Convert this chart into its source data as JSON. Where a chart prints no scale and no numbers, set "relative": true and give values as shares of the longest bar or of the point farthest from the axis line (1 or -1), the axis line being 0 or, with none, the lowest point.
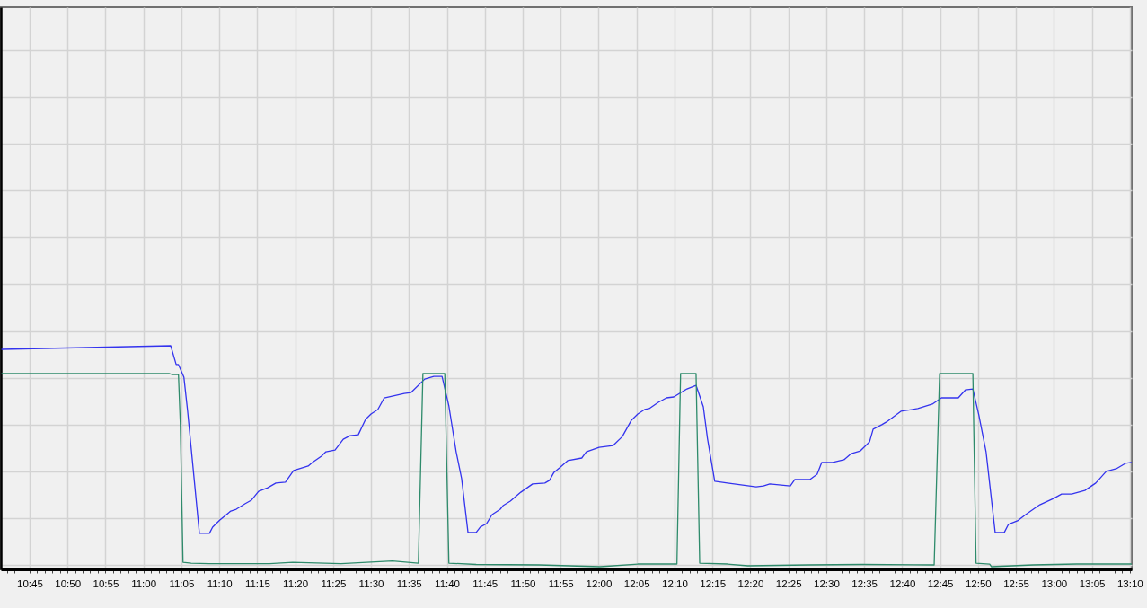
{
  "chart_data": {
    "type": "line",
    "relative": true,
    "grid": true,
    "xlim": [
      10.687,
      13.171
    ],
    "xticks": [
      {
        "value": 10.7,
        "label": null
      },
      {
        "value": 10.7167,
        "label": null
      },
      {
        "value": 10.7333,
        "label": null
      },
      {
        "value": 10.75,
        "label": "10:45"
      },
      {
        "value": 10.7667,
        "label": null
      },
      {
        "value": 10.7833,
        "label": null
      },
      {
        "value": 10.8,
        "label": null
      },
      {
        "value": 10.8167,
        "label": null
      },
      {
        "value": 10.8333,
        "label": "10:50"
      },
      {
        "value": 10.85,
        "label": null
      },
      {
        "value": 10.8667,
        "label": null
      },
      {
        "value": 10.8833,
        "label": null
      },
      {
        "value": 10.9,
        "label": null
      },
      {
        "value": 10.9167,
        "label": "10:55"
      },
      {
        "value": 10.9333,
        "label": null
      },
      {
        "value": 10.95,
        "label": null
      },
      {
        "value": 10.9667,
        "label": null
      },
      {
        "value": 10.9833,
        "label": null
      },
      {
        "value": 11,
        "label": "11:00"
      },
      {
        "value": 11.0167,
        "label": null
      },
      {
        "value": 11.0333,
        "label": null
      },
      {
        "value": 11.05,
        "label": null
      },
      {
        "value": 11.0667,
        "label": null
      },
      {
        "value": 11.0833,
        "label": "11:05"
      },
      {
        "value": 11.1,
        "label": null
      },
      {
        "value": 11.1167,
        "label": null
      },
      {
        "value": 11.1333,
        "label": null
      },
      {
        "value": 11.15,
        "label": null
      },
      {
        "value": 11.1667,
        "label": "11:10"
      },
      {
        "value": 11.1833,
        "label": null
      },
      {
        "value": 11.2,
        "label": null
      },
      {
        "value": 11.2167,
        "label": null
      },
      {
        "value": 11.2333,
        "label": null
      },
      {
        "value": 11.25,
        "label": "11:15"
      },
      {
        "value": 11.2667,
        "label": null
      },
      {
        "value": 11.2833,
        "label": null
      },
      {
        "value": 11.3,
        "label": null
      },
      {
        "value": 11.3167,
        "label": null
      },
      {
        "value": 11.3333,
        "label": "11:20"
      },
      {
        "value": 11.35,
        "label": null
      },
      {
        "value": 11.3667,
        "label": null
      },
      {
        "value": 11.3833,
        "label": null
      },
      {
        "value": 11.4,
        "label": null
      },
      {
        "value": 11.4167,
        "label": "11:25"
      },
      {
        "value": 11.4333,
        "label": null
      },
      {
        "value": 11.45,
        "label": null
      },
      {
        "value": 11.4667,
        "label": null
      },
      {
        "value": 11.4833,
        "label": null
      },
      {
        "value": 11.5,
        "label": "11:30"
      },
      {
        "value": 11.5167,
        "label": null
      },
      {
        "value": 11.5333,
        "label": null
      },
      {
        "value": 11.55,
        "label": null
      },
      {
        "value": 11.5667,
        "label": null
      },
      {
        "value": 11.5833,
        "label": "11:35"
      },
      {
        "value": 11.6,
        "label": null
      },
      {
        "value": 11.6167,
        "label": null
      },
      {
        "value": 11.6333,
        "label": null
      },
      {
        "value": 11.65,
        "label": null
      },
      {
        "value": 11.6667,
        "label": "11:40"
      },
      {
        "value": 11.6833,
        "label": null
      },
      {
        "value": 11.7,
        "label": null
      },
      {
        "value": 11.7167,
        "label": null
      },
      {
        "value": 11.7333,
        "label": null
      },
      {
        "value": 11.75,
        "label": "11:45"
      },
      {
        "value": 11.7667,
        "label": null
      },
      {
        "value": 11.7833,
        "label": null
      },
      {
        "value": 11.8,
        "label": null
      },
      {
        "value": 11.8167,
        "label": null
      },
      {
        "value": 11.8333,
        "label": "11:50"
      },
      {
        "value": 11.85,
        "label": null
      },
      {
        "value": 11.8667,
        "label": null
      },
      {
        "value": 11.8833,
        "label": null
      },
      {
        "value": 11.9,
        "label": null
      },
      {
        "value": 11.9167,
        "label": "11:55"
      },
      {
        "value": 11.9333,
        "label": null
      },
      {
        "value": 11.95,
        "label": null
      },
      {
        "value": 11.9667,
        "label": null
      },
      {
        "value": 11.9833,
        "label": null
      },
      {
        "value": 12,
        "label": "12:00"
      },
      {
        "value": 12.0167,
        "label": null
      },
      {
        "value": 12.0333,
        "label": null
      },
      {
        "value": 12.05,
        "label": null
      },
      {
        "value": 12.0667,
        "label": null
      },
      {
        "value": 12.0833,
        "label": "12:05"
      },
      {
        "value": 12.1,
        "label": null
      },
      {
        "value": 12.1167,
        "label": null
      },
      {
        "value": 12.1333,
        "label": null
      },
      {
        "value": 12.15,
        "label": null
      },
      {
        "value": 12.1667,
        "label": "12:10"
      },
      {
        "value": 12.1833,
        "label": null
      },
      {
        "value": 12.2,
        "label": null
      },
      {
        "value": 12.2167,
        "label": null
      },
      {
        "value": 12.2333,
        "label": null
      },
      {
        "value": 12.25,
        "label": "12:15"
      },
      {
        "value": 12.2667,
        "label": null
      },
      {
        "value": 12.2833,
        "label": null
      },
      {
        "value": 12.3,
        "label": null
      },
      {
        "value": 12.3167,
        "label": null
      },
      {
        "value": 12.3333,
        "label": "12:20"
      },
      {
        "value": 12.35,
        "label": null
      },
      {
        "value": 12.3667,
        "label": null
      },
      {
        "value": 12.3833,
        "label": null
      },
      {
        "value": 12.4,
        "label": null
      },
      {
        "value": 12.4167,
        "label": "12:25"
      },
      {
        "value": 12.4333,
        "label": null
      },
      {
        "value": 12.45,
        "label": null
      },
      {
        "value": 12.4667,
        "label": null
      },
      {
        "value": 12.4833,
        "label": null
      },
      {
        "value": 12.5,
        "label": "12:30"
      },
      {
        "value": 12.5167,
        "label": null
      },
      {
        "value": 12.5333,
        "label": null
      },
      {
        "value": 12.55,
        "label": null
      },
      {
        "value": 12.5667,
        "label": null
      },
      {
        "value": 12.5833,
        "label": "12:35"
      },
      {
        "value": 12.6,
        "label": null
      },
      {
        "value": 12.6167,
        "label": null
      },
      {
        "value": 12.6333,
        "label": null
      },
      {
        "value": 12.65,
        "label": null
      },
      {
        "value": 12.6667,
        "label": "12:40"
      },
      {
        "value": 12.6833,
        "label": null
      },
      {
        "value": 12.7,
        "label": null
      },
      {
        "value": 12.7167,
        "label": null
      },
      {
        "value": 12.7333,
        "label": null
      },
      {
        "value": 12.75,
        "label": "12:45"
      },
      {
        "value": 12.7667,
        "label": null
      },
      {
        "value": 12.7833,
        "label": null
      },
      {
        "value": 12.8,
        "label": null
      },
      {
        "value": 12.8167,
        "label": null
      },
      {
        "value": 12.8333,
        "label": "12:50"
      },
      {
        "value": 12.85,
        "label": null
      },
      {
        "value": 12.8667,
        "label": null
      },
      {
        "value": 12.8833,
        "label": null
      },
      {
        "value": 12.9,
        "label": null
      },
      {
        "value": 12.9167,
        "label": "12:55"
      },
      {
        "value": 12.9333,
        "label": null
      },
      {
        "value": 12.95,
        "label": null
      },
      {
        "value": 12.9667,
        "label": null
      },
      {
        "value": 12.9833,
        "label": null
      },
      {
        "value": 13,
        "label": "13:00"
      },
      {
        "value": 13.0167,
        "label": null
      },
      {
        "value": 13.0333,
        "label": null
      },
      {
        "value": 13.05,
        "label": null
      },
      {
        "value": 13.0667,
        "label": null
      },
      {
        "value": 13.0833,
        "label": "13:05"
      },
      {
        "value": 13.1,
        "label": null
      },
      {
        "value": 13.1167,
        "label": null
      },
      {
        "value": 13.1333,
        "label": null
      },
      {
        "value": 13.15,
        "label": null
      },
      {
        "value": 13.1667,
        "label": "13:10"
      }
    ],
    "series": [
      {
        "color": "#3333ee",
        "x": [
          10.689,
          11.06,
          11.072,
          11.077,
          11.089,
          11.097,
          11.123,
          11.145,
          11.152,
          11.168,
          11.192,
          11.204,
          11.223,
          11.237,
          11.253,
          11.273,
          11.291,
          11.312,
          11.33,
          11.362,
          11.371,
          11.391,
          11.401,
          11.421,
          11.439,
          11.454,
          11.472,
          11.488,
          11.5,
          11.515,
          11.529,
          11.573,
          11.588,
          11.618,
          11.638,
          11.656,
          11.671,
          11.687,
          11.699,
          11.713,
          11.731,
          11.74,
          11.754,
          11.766,
          11.784,
          11.79,
          11.806,
          11.829,
          11.855,
          11.882,
          11.892,
          11.902,
          11.914,
          11.932,
          11.963,
          11.973,
          12.001,
          12.032,
          12.052,
          12.072,
          12.086,
          12.101,
          12.111,
          12.131,
          12.149,
          12.165,
          12.194,
          12.214,
          12.23,
          12.239,
          12.255,
          12.283,
          12.346,
          12.362,
          12.376,
          12.421,
          12.431,
          12.464,
          12.48,
          12.49,
          12.514,
          12.539,
          12.555,
          12.575,
          12.595,
          12.603,
          12.622,
          12.632,
          12.664,
          12.701,
          12.733,
          12.753,
          12.79,
          12.806,
          12.822,
          12.835,
          12.851,
          12.871,
          12.891,
          12.9,
          12.92,
          12.938,
          12.969,
          12.999,
          13.017,
          13.039,
          13.068,
          13.092,
          13.115,
          13.137,
          13.157,
          13.17
        ],
        "values": [
          0.984,
          1,
          0.916,
          0.916,
          0.859,
          0.711,
          0.161,
          0.161,
          0.189,
          0.221,
          0.261,
          0.269,
          0.293,
          0.309,
          0.349,
          0.365,
          0.386,
          0.39,
          0.442,
          0.462,
          0.478,
          0.506,
          0.526,
          0.534,
          0.582,
          0.598,
          0.602,
          0.671,
          0.695,
          0.715,
          0.767,
          0.787,
          0.791,
          0.851,
          0.863,
          0.863,
          0.731,
          0.526,
          0.406,
          0.165,
          0.165,
          0.189,
          0.205,
          0.245,
          0.269,
          0.285,
          0.305,
          0.345,
          0.382,
          0.386,
          0.398,
          0.434,
          0.454,
          0.486,
          0.498,
          0.526,
          0.546,
          0.554,
          0.594,
          0.667,
          0.695,
          0.715,
          0.719,
          0.747,
          0.767,
          0.771,
          0.807,
          0.823,
          0.727,
          0.586,
          0.394,
          0.386,
          0.369,
          0.373,
          0.382,
          0.373,
          0.402,
          0.402,
          0.426,
          0.478,
          0.478,
          0.49,
          0.518,
          0.53,
          0.57,
          0.627,
          0.647,
          0.659,
          0.707,
          0.719,
          0.739,
          0.767,
          0.767,
          0.803,
          0.807,
          0.691,
          0.526,
          0.165,
          0.165,
          0.201,
          0.217,
          0.245,
          0.289,
          0.317,
          0.337,
          0.337,
          0.353,
          0.386,
          0.438,
          0.45,
          0.474,
          0.478
        ]
      },
      {
        "color": "#2e8b6b",
        "x": [
          10.689,
          11.056,
          11.064,
          11.077,
          11.081,
          11.087,
          11.105,
          11.145,
          11.277,
          11.328,
          11.434,
          11.547,
          11.604,
          11.614,
          11.662,
          11.671,
          11.731,
          11.869,
          12.003,
          12.086,
          12.172,
          12.18,
          12.214,
          12.222,
          12.283,
          12.328,
          12.461,
          12.578,
          12.737,
          12.749,
          12.822,
          12.829,
          12.859,
          12.863,
          12.954,
          13.05,
          13.17
        ],
        "values": [
          0.876,
          0.876,
          0.871,
          0.871,
          0.659,
          0.032,
          0.028,
          0.026,
          0.026,
          0.032,
          0.026,
          0.038,
          0.028,
          0.876,
          0.876,
          0.028,
          0.022,
          0.02,
          0.012,
          0.024,
          0.024,
          0.876,
          0.876,
          0.028,
          0.024,
          0.016,
          0.02,
          0.022,
          0.02,
          0.876,
          0.876,
          0.028,
          0.024,
          0.012,
          0.02,
          0.024,
          0.024
        ]
      }
    ]
  }
}
